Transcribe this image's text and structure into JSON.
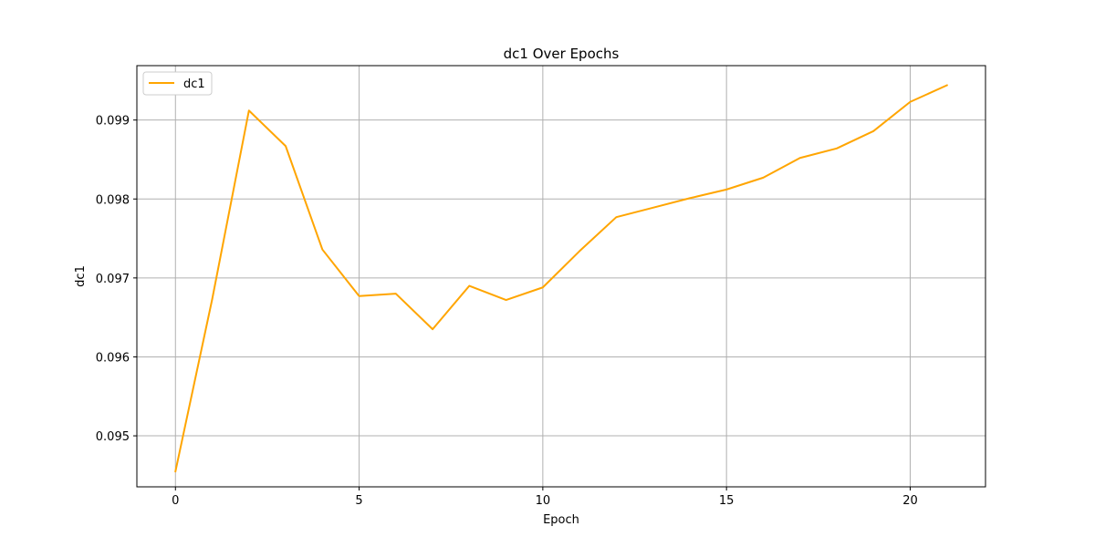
{
  "chart_data": {
    "type": "line",
    "title": "dc1 Over Epochs",
    "xlabel": "Epoch",
    "ylabel": "dc1",
    "xlim": [
      -1.05,
      22.05
    ],
    "ylim": [
      0.094354,
      0.099689
    ],
    "xticks": [
      0,
      5,
      10,
      15,
      20
    ],
    "xtick_labels": [
      "0",
      "5",
      "10",
      "15",
      "20"
    ],
    "yticks": [
      0.095,
      0.096,
      0.097,
      0.098,
      0.099
    ],
    "ytick_labels": [
      "0.095",
      "0.096",
      "0.097",
      "0.098",
      "0.099"
    ],
    "grid": true,
    "legend_position": "top-left",
    "series": [
      {
        "name": "dc1",
        "color": "#ffa500",
        "x": [
          0,
          1,
          2,
          3,
          4,
          5,
          6,
          7,
          8,
          9,
          10,
          11,
          12,
          13,
          14,
          15,
          16,
          17,
          18,
          19,
          20,
          21
        ],
        "y": [
          0.09455,
          0.09673,
          0.09912,
          0.09867,
          0.09736,
          0.09677,
          0.0968,
          0.09635,
          0.0969,
          0.09672,
          0.09688,
          0.09734,
          0.09777,
          0.09789,
          0.09801,
          0.09812,
          0.09827,
          0.09852,
          0.09864,
          0.09886,
          0.09923,
          0.09944
        ]
      }
    ]
  }
}
